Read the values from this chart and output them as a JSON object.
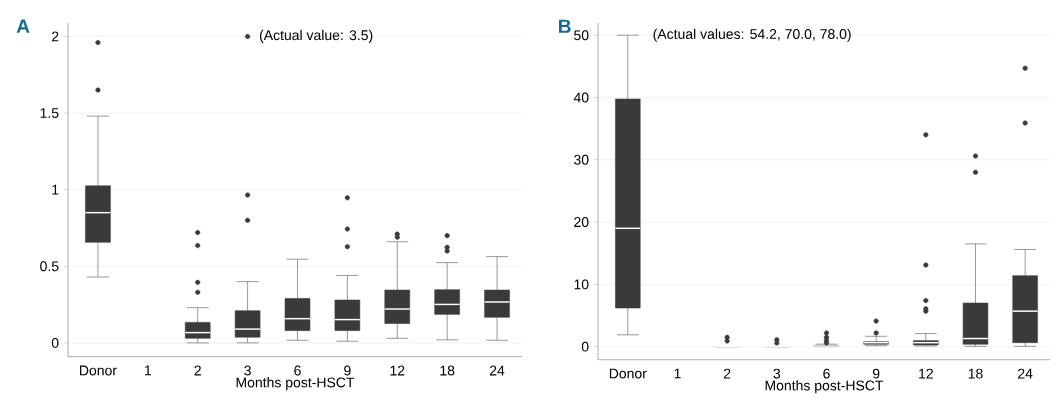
{
  "chart_data": [
    {
      "type": "box",
      "title": "A",
      "xlabel": "Months post-HSCT",
      "categories": [
        "Donor",
        "1",
        "2",
        "3",
        "6",
        "9",
        "12",
        "18",
        "24"
      ],
      "ylim": [
        -0.09,
        2.09
      ],
      "yticks": [
        0,
        0.5,
        1,
        1.5,
        2
      ],
      "grid": "y",
      "annotations": [
        "(Actual value: 3.5)"
      ],
      "series": [
        {
          "color": "#3a3a3a",
          "boxes": [
            {
              "low": 0.43,
              "q1": 0.656,
              "median": 0.85,
              "q3": 1.025,
              "high": 1.48,
              "outliers": [
                1.96,
                1.65
              ]
            },
            null,
            {
              "low": 0,
              "q1": 0.03,
              "median": 0.067,
              "q3": 0.134,
              "high": 0.23,
              "outliers": [
                0.72,
                0.635,
                0.395,
                0.33
              ]
            },
            {
              "low": 0,
              "q1": 0.037,
              "median": 0.09,
              "q3": 0.21,
              "high": 0.4,
              "outliers": [
                2,
                0.965,
                0.8
              ]
            },
            {
              "low": 0.017,
              "q1": 0.08,
              "median": 0.158,
              "q3": 0.29,
              "high": 0.546
            },
            {
              "low": 0.011,
              "q1": 0.08,
              "median": 0.152,
              "q3": 0.28,
              "high": 0.44,
              "outliers": [
                0.947,
                0.743,
                0.628
              ]
            },
            {
              "low": 0.03,
              "q1": 0.126,
              "median": 0.221,
              "q3": 0.345,
              "high": 0.66,
              "outliers": [
                0.71,
                0.69
              ]
            },
            {
              "low": 0.02,
              "q1": 0.186,
              "median": 0.251,
              "q3": 0.347,
              "high": 0.524,
              "outliers": [
                0.7,
                0.624,
                0.6
              ]
            },
            {
              "low": 0.017,
              "q1": 0.167,
              "median": 0.267,
              "q3": 0.345,
              "high": 0.563
            }
          ]
        }
      ]
    },
    {
      "type": "box",
      "title": "B",
      "xlabel": "Months post-HSCT",
      "categories": [
        "Donor",
        "1",
        "2",
        "3",
        "6",
        "9",
        "12",
        "18",
        "24"
      ],
      "ylim": [
        -2.1,
        52
      ],
      "yticks": [
        0,
        10,
        20,
        30,
        40,
        50
      ],
      "grid": "y",
      "annotations": [
        "(Actual values: 54.2, 70.0, 78.0)"
      ],
      "series": [
        {
          "color": "#3a3a3a",
          "boxes": [
            {
              "low": 1.9,
              "q1": 6.2,
              "median": 19.0,
              "q3": 39.75,
              "high": 50
            },
            null,
            {
              "low": 0,
              "q1": 0,
              "median": 0,
              "q3": 0,
              "high": 0,
              "outliers": [
                1.5,
                0.9
              ]
            },
            {
              "low": 0,
              "q1": 0,
              "median": 0,
              "q3": 0,
              "high": 0,
              "outliers": [
                1.1,
                0.6
              ]
            },
            {
              "low": 0,
              "q1": 0.05,
              "median": 0.1,
              "q3": 0.2,
              "high": 0.4,
              "outliers": [
                2.2,
                1.5,
                1.0,
                0.6
              ]
            },
            {
              "low": 0.16,
              "q1": 0.38,
              "median": 0.64,
              "q3": 0.8,
              "high": 1.66,
              "outliers": [
                4.1,
                2.2
              ]
            },
            {
              "low": 0.1,
              "q1": 0.27,
              "median": 0.64,
              "q3": 0.97,
              "high": 2.1,
              "outliers": [
                34,
                13.1,
                7.4,
                6.1,
                5.7
              ]
            },
            {
              "low": 0.05,
              "q1": 0.38,
              "median": 1.3,
              "q3": 7.0,
              "high": 16.5,
              "outliers": [
                30.6,
                28.0
              ]
            },
            {
              "low": 0.05,
              "q1": 0.64,
              "median": 5.7,
              "q3": 11.4,
              "high": 15.6,
              "outliers": [
                44.7,
                35.9
              ]
            }
          ]
        }
      ]
    }
  ]
}
